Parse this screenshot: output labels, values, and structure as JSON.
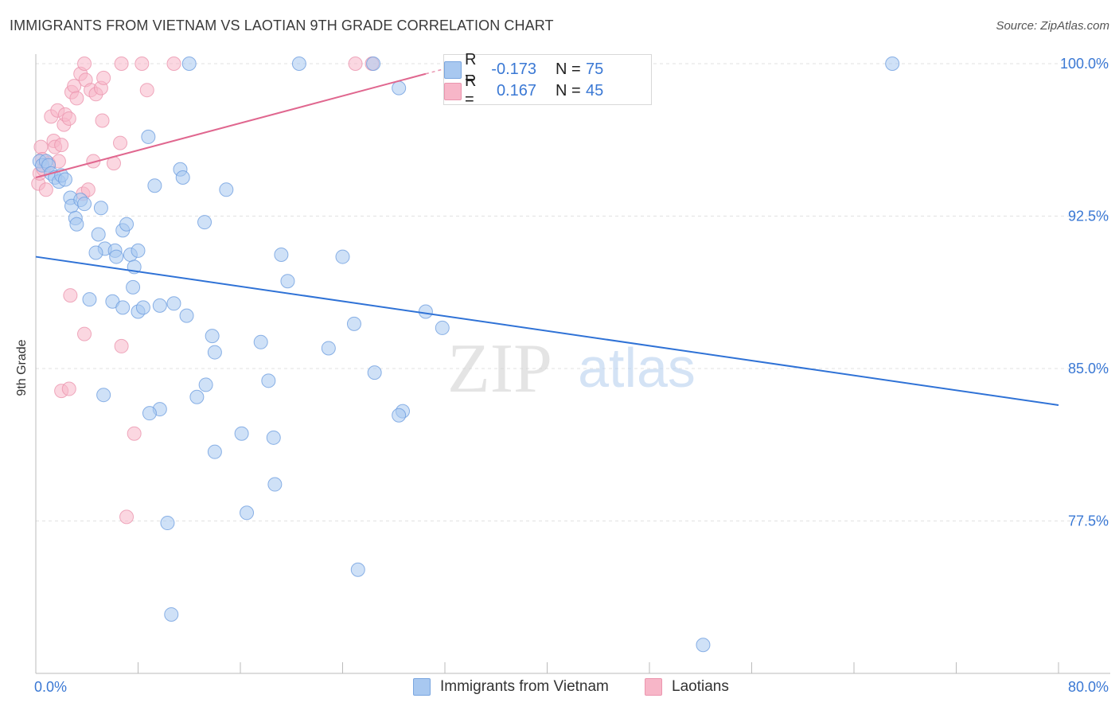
{
  "title": "IMMIGRANTS FROM VIETNAM VS LAOTIAN 9TH GRADE CORRELATION CHART",
  "source": "Source: ZipAtlas.com",
  "watermark": {
    "zip": "ZIP",
    "atlas": "atlas"
  },
  "legend_stats": [
    {
      "r_label": "R =",
      "r_value": "-0.173",
      "n_label": "N =",
      "n_value": "75",
      "color": "#a8c8f0"
    },
    {
      "r_label": "R =",
      "r_value": "0.167",
      "n_label": "N =",
      "n_value": "45",
      "color": "#f7b6c8"
    }
  ],
  "legend_series": [
    {
      "label": "Immigrants from Vietnam",
      "color": "#a8c8f0"
    },
    {
      "label": "Laotians",
      "color": "#f7b6c8"
    }
  ],
  "chart_data": {
    "type": "scatter",
    "title": "IMMIGRANTS FROM VIETNAM VS LAOTIAN 9TH GRADE CORRELATION CHART",
    "xlabel": "",
    "ylabel": "9th Grade",
    "xlim": [
      0,
      80
    ],
    "ylim": [
      71.2,
      100.8
    ],
    "x_tick_labels": [
      "0.0%",
      "80.0%"
    ],
    "y_ticks": [
      77.5,
      85.0,
      92.5,
      100.0
    ],
    "y_tick_labels": [
      "77.5%",
      "85.0%",
      "92.5%",
      "100.0%"
    ],
    "grid": true,
    "legend": "bottom-center",
    "series": [
      {
        "name": "Immigrants from Vietnam",
        "color": "#a8c8f0",
        "line_color": "#2f72d6",
        "trend": {
          "x": [
            0,
            80
          ],
          "y": [
            90.5,
            83.2
          ]
        },
        "points": [
          [
            0.3,
            95.2
          ],
          [
            0.5,
            95.0
          ],
          [
            0.8,
            95.2
          ],
          [
            1.0,
            95.0
          ],
          [
            1.2,
            94.6
          ],
          [
            1.5,
            94.4
          ],
          [
            1.8,
            94.2
          ],
          [
            2.0,
            94.5
          ],
          [
            2.3,
            94.3
          ],
          [
            2.7,
            93.4
          ],
          [
            2.8,
            93.0
          ],
          [
            3.1,
            92.4
          ],
          [
            3.2,
            92.1
          ],
          [
            3.5,
            93.3
          ],
          [
            3.8,
            93.1
          ],
          [
            5.1,
            92.9
          ],
          [
            4.9,
            91.6
          ],
          [
            5.4,
            90.9
          ],
          [
            4.7,
            90.7
          ],
          [
            6.2,
            90.8
          ],
          [
            6.3,
            90.5
          ],
          [
            6.8,
            91.8
          ],
          [
            7.1,
            92.1
          ],
          [
            7.4,
            90.6
          ],
          [
            8.0,
            90.8
          ],
          [
            7.7,
            90.0
          ],
          [
            7.6,
            89.0
          ],
          [
            4.2,
            88.4
          ],
          [
            6.0,
            88.3
          ],
          [
            6.8,
            88.0
          ],
          [
            8.0,
            87.8
          ],
          [
            8.4,
            88.0
          ],
          [
            9.7,
            88.1
          ],
          [
            10.8,
            88.2
          ],
          [
            11.8,
            87.6
          ],
          [
            8.8,
            96.4
          ],
          [
            9.3,
            94.0
          ],
          [
            11.3,
            94.8
          ],
          [
            11.5,
            94.4
          ],
          [
            13.2,
            92.2
          ],
          [
            14.9,
            93.8
          ],
          [
            12.0,
            100.0
          ],
          [
            19.2,
            90.6
          ],
          [
            19.7,
            89.3
          ],
          [
            24.0,
            90.5
          ],
          [
            13.8,
            86.6
          ],
          [
            14.0,
            85.8
          ],
          [
            17.6,
            86.3
          ],
          [
            22.9,
            86.0
          ],
          [
            24.9,
            87.2
          ],
          [
            30.5,
            87.8
          ],
          [
            31.8,
            87.0
          ],
          [
            26.5,
            84.8
          ],
          [
            18.2,
            84.4
          ],
          [
            13.3,
            84.2
          ],
          [
            5.3,
            83.7
          ],
          [
            12.6,
            83.6
          ],
          [
            9.7,
            83.0
          ],
          [
            8.9,
            82.8
          ],
          [
            28.7,
            82.9
          ],
          [
            28.4,
            82.7
          ],
          [
            16.1,
            81.8
          ],
          [
            18.6,
            81.6
          ],
          [
            14.0,
            80.9
          ],
          [
            18.7,
            79.3
          ],
          [
            16.5,
            77.9
          ],
          [
            10.3,
            77.4
          ],
          [
            25.2,
            75.1
          ],
          [
            10.6,
            72.9
          ],
          [
            52.2,
            71.4
          ],
          [
            20.6,
            100.0
          ],
          [
            26.4,
            100.0
          ],
          [
            28.4,
            98.8
          ],
          [
            43.0,
            100.0
          ],
          [
            67.0,
            100.0
          ]
        ]
      },
      {
        "name": "Laotians",
        "color": "#f7b6c8",
        "line_color": "#e0678f",
        "trend": {
          "x": [
            0,
            30.5
          ],
          "y": [
            94.4,
            99.5
          ]
        },
        "points": [
          [
            0.2,
            94.1
          ],
          [
            0.3,
            94.6
          ],
          [
            0.4,
            95.9
          ],
          [
            0.5,
            95.3
          ],
          [
            0.6,
            94.8
          ],
          [
            0.8,
            93.8
          ],
          [
            1.0,
            95.1
          ],
          [
            1.2,
            97.4
          ],
          [
            1.4,
            96.2
          ],
          [
            1.5,
            95.9
          ],
          [
            1.7,
            97.7
          ],
          [
            1.8,
            95.2
          ],
          [
            2.0,
            96.0
          ],
          [
            2.2,
            97.0
          ],
          [
            2.3,
            97.5
          ],
          [
            2.6,
            97.3
          ],
          [
            2.8,
            98.6
          ],
          [
            3.0,
            98.9
          ],
          [
            3.2,
            98.3
          ],
          [
            3.5,
            99.5
          ],
          [
            3.9,
            99.2
          ],
          [
            4.3,
            98.7
          ],
          [
            4.7,
            98.5
          ],
          [
            5.1,
            98.8
          ],
          [
            5.3,
            99.3
          ],
          [
            5.2,
            97.2
          ],
          [
            4.5,
            95.2
          ],
          [
            6.1,
            95.1
          ],
          [
            6.6,
            96.1
          ],
          [
            8.7,
            98.7
          ],
          [
            3.7,
            93.6
          ],
          [
            4.1,
            93.8
          ],
          [
            3.8,
            100.0
          ],
          [
            6.7,
            100.0
          ],
          [
            8.3,
            100.0
          ],
          [
            10.8,
            100.0
          ],
          [
            25.0,
            100.0
          ],
          [
            26.3,
            100.0
          ],
          [
            2.7,
            88.6
          ],
          [
            3.8,
            86.7
          ],
          [
            6.7,
            86.1
          ],
          [
            2.0,
            83.9
          ],
          [
            2.6,
            84.0
          ],
          [
            7.7,
            81.8
          ],
          [
            7.1,
            77.7
          ]
        ]
      }
    ]
  }
}
